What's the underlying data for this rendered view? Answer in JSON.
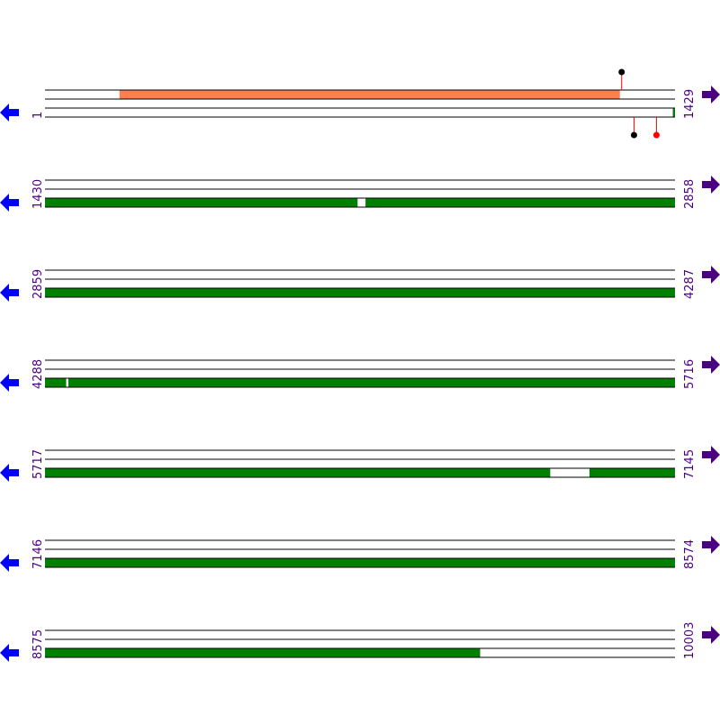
{
  "colors": {
    "top_feature": "#ff7f50",
    "bottom_feature": "#008000",
    "left_arrow": "#0000ff",
    "right_arrow": "#4b0082",
    "label": "#4b0082",
    "lollipop_black": "#000000",
    "lollipop_red": "#ff0000",
    "stick": "#ff0000"
  },
  "icons": {
    "left": "arrow-left-icon",
    "right": "arrow-right-icon"
  },
  "rows": [
    {
      "start": "1",
      "end": "1429",
      "s": 1,
      "e": 1429,
      "top": [
        [
          170,
          1305
        ]
      ],
      "bottom": [
        [
          1425,
          1429
        ]
      ],
      "lollipops": [
        {
          "pos": 1309,
          "side": "top",
          "color": "#000000"
        },
        {
          "pos": 1337,
          "side": "bottom",
          "color": "#000000"
        },
        {
          "pos": 1388,
          "side": "bottom",
          "color": "#ff0000"
        }
      ]
    },
    {
      "start": "1430",
      "end": "2858",
      "s": 1430,
      "e": 2858,
      "top": [],
      "bottom": [
        [
          1430,
          2138
        ],
        [
          2157,
          2858
        ]
      ],
      "lollipops": []
    },
    {
      "start": "2859",
      "end": "4287",
      "s": 2859,
      "e": 4287,
      "top": [],
      "bottom": [
        [
          2859,
          4287
        ]
      ],
      "lollipops": []
    },
    {
      "start": "4288",
      "end": "5716",
      "s": 4288,
      "e": 5716,
      "top": [],
      "bottom": [
        [
          4288,
          4335
        ],
        [
          4341,
          5716
        ]
      ],
      "lollipops": []
    },
    {
      "start": "5717",
      "end": "7145",
      "s": 5717,
      "e": 7145,
      "top": [],
      "bottom": [
        [
          5717,
          6862
        ],
        [
          6952,
          7145
        ]
      ],
      "lollipops": []
    },
    {
      "start": "7146",
      "end": "8574",
      "s": 7146,
      "e": 8574,
      "top": [],
      "bottom": [
        [
          7146,
          8574
        ]
      ],
      "lollipops": []
    },
    {
      "start": "8575",
      "end": "10003",
      "s": 8575,
      "e": 10003,
      "top": [],
      "bottom": [
        [
          8575,
          9561
        ]
      ],
      "lollipops": []
    }
  ]
}
